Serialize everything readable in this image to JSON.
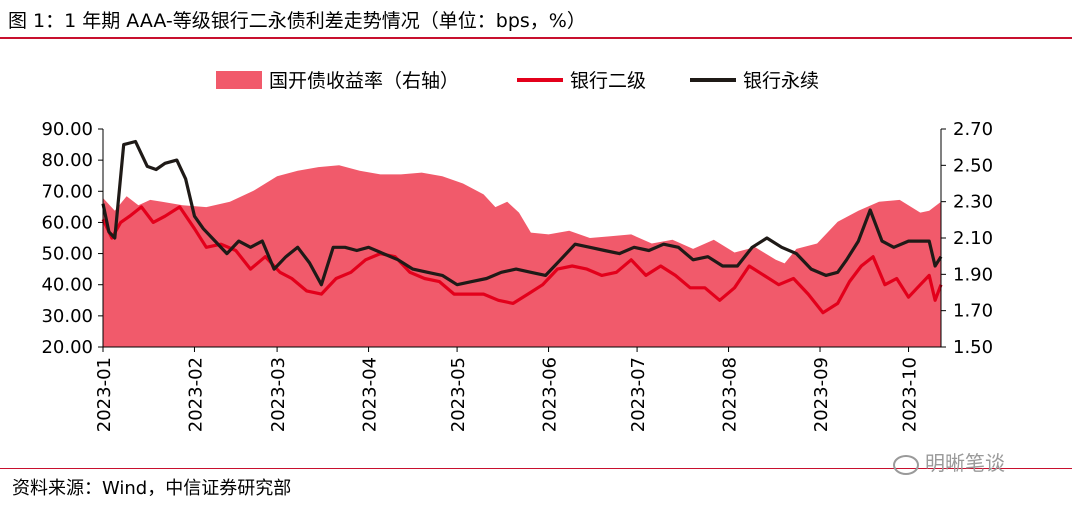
{
  "header": {
    "title": "图 1：1 年期 AAA-等级银行二永债利差走势情况（单位：bps，%）"
  },
  "footer": {
    "source": "资料来源：Wind，中信证券研究部",
    "watermark": "明晰笔谈"
  },
  "colors": {
    "accent": "#c8102e",
    "area": "#f15a6b",
    "secondary_line": "#e3001b",
    "perpetual_line": "#1f1a17"
  },
  "chart_data": {
    "type": "line",
    "title": "",
    "xlabel": "",
    "ylabel": "",
    "x_axis_type": "date",
    "xlim": [
      "2023-01-01",
      "2023-10-12"
    ],
    "categories": [
      "2023-01",
      "2023-02",
      "2023-03",
      "2023-04",
      "2023-05",
      "2023-06",
      "2023-07",
      "2023-08",
      "2023-09",
      "2023-10"
    ],
    "ylim_left": [
      20,
      90
    ],
    "ylim_right": [
      1.5,
      2.7
    ],
    "left_tick_labels": [
      "90.00",
      "80.00",
      "70.00",
      "60.00",
      "50.00",
      "40.00",
      "30.00",
      "20.00"
    ],
    "right_tick_labels": [
      "2.70",
      "2.50",
      "2.30",
      "2.10",
      "1.90",
      "1.70",
      "1.50"
    ],
    "legend_position": "top",
    "grid": false,
    "series": [
      {
        "name": "国开债收益率（右轴）",
        "kind": "area",
        "axis": "right",
        "x": [
          "2023-01-01",
          "2023-01-05",
          "2023-01-09",
          "2023-01-13",
          "2023-01-17",
          "2023-01-21",
          "2023-01-28",
          "2023-02-05",
          "2023-02-13",
          "2023-02-21",
          "2023-03-01",
          "2023-03-08",
          "2023-03-15",
          "2023-03-22",
          "2023-03-29",
          "2023-04-05",
          "2023-04-12",
          "2023-04-19",
          "2023-04-26",
          "2023-05-03",
          "2023-05-10",
          "2023-05-14",
          "2023-05-18",
          "2023-05-22",
          "2023-05-26",
          "2023-06-01",
          "2023-06-08",
          "2023-06-15",
          "2023-06-22",
          "2023-06-29",
          "2023-07-06",
          "2023-07-13",
          "2023-07-20",
          "2023-07-27",
          "2023-08-03",
          "2023-08-10",
          "2023-08-17",
          "2023-08-20",
          "2023-08-24",
          "2023-08-31",
          "2023-09-07",
          "2023-09-14",
          "2023-09-21",
          "2023-09-28",
          "2023-10-05",
          "2023-10-08",
          "2023-10-12"
        ],
        "values": [
          2.32,
          2.25,
          2.33,
          2.28,
          2.31,
          2.3,
          2.28,
          2.27,
          2.3,
          2.36,
          2.44,
          2.47,
          2.49,
          2.5,
          2.47,
          2.45,
          2.45,
          2.46,
          2.44,
          2.4,
          2.34,
          2.27,
          2.3,
          2.24,
          2.13,
          2.12,
          2.14,
          2.1,
          2.11,
          2.12,
          2.07,
          2.09,
          2.04,
          2.09,
          2.02,
          2.05,
          1.98,
          1.96,
          2.04,
          2.07,
          2.19,
          2.25,
          2.3,
          2.31,
          2.24,
          2.25,
          2.3
        ]
      },
      {
        "name": "银行二级",
        "kind": "line",
        "axis": "left",
        "x": [
          "2023-01-01",
          "2023-01-04",
          "2023-01-07",
          "2023-01-10",
          "2023-01-14",
          "2023-01-18",
          "2023-01-22",
          "2023-01-27",
          "2023-02-01",
          "2023-02-05",
          "2023-02-10",
          "2023-02-15",
          "2023-02-20",
          "2023-02-25",
          "2023-03-02",
          "2023-03-06",
          "2023-03-11",
          "2023-03-16",
          "2023-03-21",
          "2023-03-26",
          "2023-03-31",
          "2023-04-05",
          "2023-04-10",
          "2023-04-15",
          "2023-04-20",
          "2023-04-25",
          "2023-04-30",
          "2023-05-05",
          "2023-05-10",
          "2023-05-15",
          "2023-05-20",
          "2023-05-25",
          "2023-05-30",
          "2023-06-04",
          "2023-06-09",
          "2023-06-14",
          "2023-06-19",
          "2023-06-24",
          "2023-06-29",
          "2023-07-04",
          "2023-07-09",
          "2023-07-14",
          "2023-07-19",
          "2023-07-24",
          "2023-07-29",
          "2023-08-03",
          "2023-08-08",
          "2023-08-13",
          "2023-08-18",
          "2023-08-23",
          "2023-08-28",
          "2023-09-02",
          "2023-09-07",
          "2023-09-11",
          "2023-09-15",
          "2023-09-19",
          "2023-09-23",
          "2023-09-27",
          "2023-10-01",
          "2023-10-05",
          "2023-10-08",
          "2023-10-10",
          "2023-10-12"
        ],
        "values": [
          61,
          55,
          60,
          62,
          65,
          60,
          62,
          65,
          58,
          52,
          53,
          51,
          45,
          49,
          44,
          42,
          38,
          37,
          42,
          44,
          48,
          50,
          49,
          44,
          42,
          41,
          37,
          37,
          37,
          35,
          34,
          37,
          40,
          45,
          46,
          45,
          43,
          44,
          48,
          43,
          46,
          43,
          39,
          39,
          35,
          39,
          46,
          43,
          40,
          42,
          37,
          31,
          34,
          41,
          46,
          49,
          40,
          42,
          36,
          40,
          43,
          35,
          40
        ]
      },
      {
        "name": "银行永续",
        "kind": "line",
        "axis": "left",
        "x": [
          "2023-01-01",
          "2023-01-03",
          "2023-01-05",
          "2023-01-08",
          "2023-01-12",
          "2023-01-16",
          "2023-01-19",
          "2023-01-22",
          "2023-01-26",
          "2023-01-29",
          "2023-02-01",
          "2023-02-04",
          "2023-02-08",
          "2023-02-12",
          "2023-02-16",
          "2023-02-20",
          "2023-02-24",
          "2023-02-28",
          "2023-03-04",
          "2023-03-08",
          "2023-03-12",
          "2023-03-16",
          "2023-03-20",
          "2023-03-24",
          "2023-03-28",
          "2023-04-01",
          "2023-04-06",
          "2023-04-11",
          "2023-04-16",
          "2023-04-21",
          "2023-04-26",
          "2023-05-01",
          "2023-05-06",
          "2023-05-11",
          "2023-05-16",
          "2023-05-21",
          "2023-05-26",
          "2023-05-31",
          "2023-06-05",
          "2023-06-10",
          "2023-06-15",
          "2023-06-20",
          "2023-06-25",
          "2023-06-30",
          "2023-07-05",
          "2023-07-10",
          "2023-07-15",
          "2023-07-20",
          "2023-07-25",
          "2023-07-30",
          "2023-08-04",
          "2023-08-09",
          "2023-08-14",
          "2023-08-19",
          "2023-08-24",
          "2023-08-29",
          "2023-09-03",
          "2023-09-07",
          "2023-09-10",
          "2023-09-14",
          "2023-09-18",
          "2023-09-22",
          "2023-09-26",
          "2023-10-01",
          "2023-10-05",
          "2023-10-08",
          "2023-10-10",
          "2023-10-12"
        ],
        "values": [
          66,
          57,
          55,
          85,
          86,
          78,
          77,
          79,
          80,
          74,
          62,
          58,
          54,
          50,
          54,
          52,
          54,
          45,
          49,
          52,
          47,
          40,
          52,
          52,
          51,
          52,
          50,
          48,
          45,
          44,
          43,
          40,
          41,
          42,
          44,
          45,
          44,
          43,
          48,
          53,
          52,
          51,
          50,
          52,
          51,
          53,
          52,
          48,
          49,
          46,
          46,
          52,
          55,
          52,
          50,
          45,
          43,
          44,
          48,
          54,
          64,
          54,
          52,
          54,
          54,
          54,
          46,
          49
        ]
      }
    ]
  }
}
